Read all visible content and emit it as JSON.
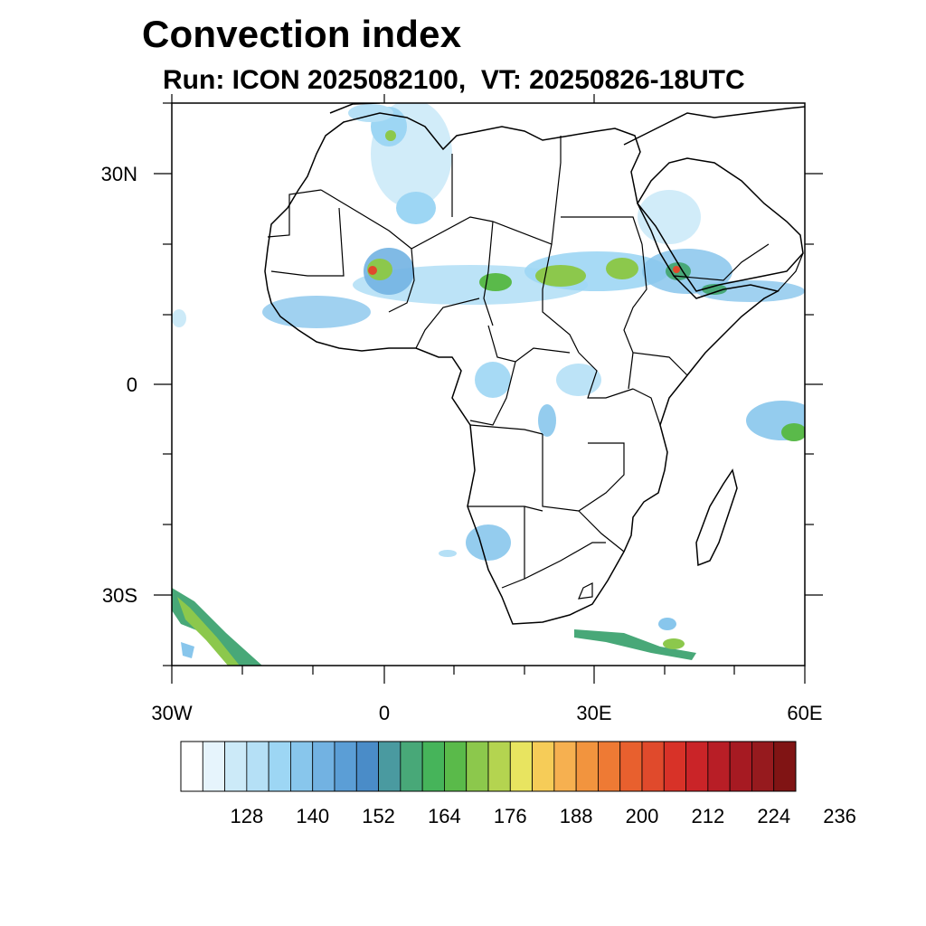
{
  "title": "Convection index",
  "subtitle": "Run: ICON 2025082100,  VT: 20250826-18UTC",
  "map": {
    "lon_range": [
      -30,
      60
    ],
    "lat_range": [
      -40,
      40
    ],
    "lat_labels": [
      "30N",
      "0",
      "30S"
    ],
    "lon_labels": [
      "30W",
      "0",
      "30E",
      "60E"
    ]
  },
  "colorbar": {
    "labels": [
      "128",
      "140",
      "152",
      "164",
      "176",
      "188",
      "200",
      "212",
      "224",
      "236"
    ],
    "colors": [
      "#ffffff",
      "#e6f4fc",
      "#cceaf8",
      "#b5e0f6",
      "#9dd6f4",
      "#88c6ec",
      "#72b2e2",
      "#5b9ed6",
      "#4a8cc8",
      "#4a9aa0",
      "#48a878",
      "#46b45a",
      "#5aba4a",
      "#8cc84c",
      "#b4d450",
      "#e8e460",
      "#f6cc58",
      "#f6b050",
      "#f2943e",
      "#ee7a34",
      "#e8602e",
      "#e04a2c",
      "#d83228",
      "#ca2428",
      "#b81e26",
      "#a61a22",
      "#961a1e",
      "#801414"
    ]
  },
  "legend_colors": {
    "low": "#88c6ec",
    "mid": "#48a878",
    "high": "#e04a2c"
  }
}
